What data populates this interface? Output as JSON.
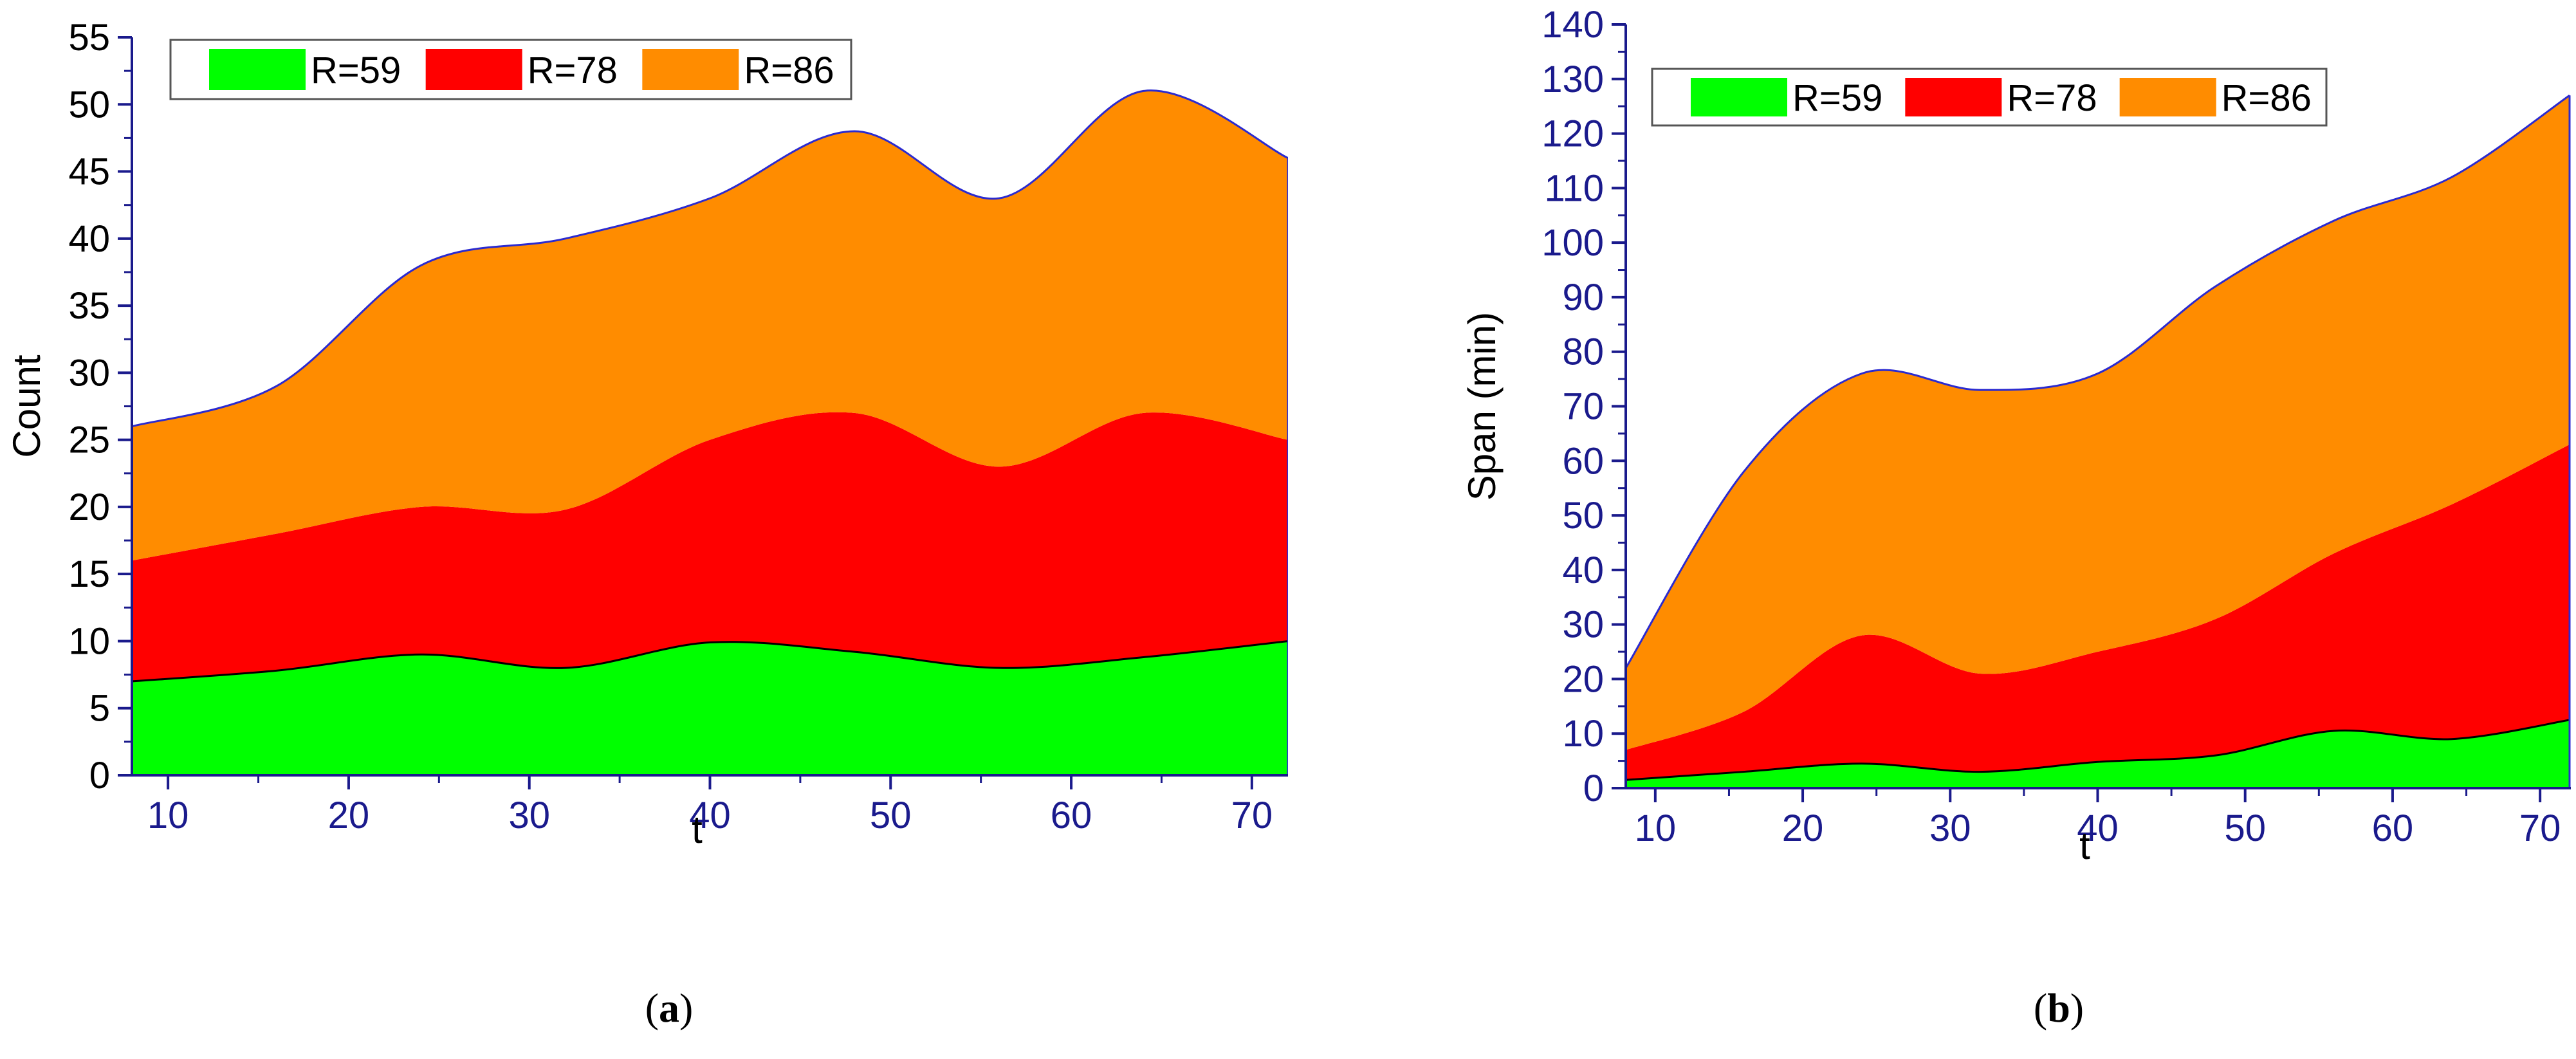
{
  "chart_data": [
    {
      "id": "a",
      "type": "area",
      "stacked": true,
      "caption": "a",
      "xlabel": "t",
      "ylabel": "Count",
      "xlim": [
        8,
        72
      ],
      "ylim": [
        0,
        55
      ],
      "xticks": [
        10,
        20,
        30,
        40,
        50,
        60,
        70
      ],
      "yticks": [
        0,
        5,
        10,
        15,
        20,
        25,
        30,
        35,
        40,
        45,
        50,
        55
      ],
      "x": [
        8,
        16,
        24,
        32,
        40,
        48,
        56,
        64,
        72
      ],
      "series": [
        {
          "name": "R=59",
          "color": "#00ff00",
          "cumulative": [
            7,
            7.8,
            9,
            8,
            9.9,
            9.2,
            8,
            8.8,
            10
          ]
        },
        {
          "name": "R=78",
          "color": "#ff0000",
          "cumulative": [
            16,
            18,
            20,
            19.8,
            25,
            27,
            23,
            27,
            25
          ]
        },
        {
          "name": "R=86",
          "color": "#ff8c00",
          "cumulative": [
            26,
            29,
            38,
            40,
            43,
            48,
            43,
            51,
            46
          ]
        }
      ],
      "legend": {
        "position": "top-left",
        "entries": [
          "R=59",
          "R=78",
          "R=86"
        ]
      },
      "axis_color": "#1a1a8c",
      "outline_color": "#2a2ad0"
    },
    {
      "id": "b",
      "type": "area",
      "stacked": true,
      "caption": "b",
      "xlabel": "t",
      "ylabel": "Span (min)",
      "xlim": [
        8,
        72
      ],
      "ylim": [
        0,
        140
      ],
      "xticks": [
        10,
        20,
        30,
        40,
        50,
        60,
        70
      ],
      "yticks": [
        0,
        10,
        20,
        30,
        40,
        50,
        60,
        70,
        80,
        90,
        100,
        110,
        120,
        130,
        140
      ],
      "x": [
        8,
        16,
        24,
        32,
        40,
        48,
        56,
        64,
        72
      ],
      "series": [
        {
          "name": "R=59",
          "color": "#00ff00",
          "cumulative": [
            1.5,
            3,
            4.5,
            3,
            4.8,
            6,
            10.5,
            9,
            12.5
          ]
        },
        {
          "name": "R=78",
          "color": "#ff0000",
          "cumulative": [
            7,
            14,
            28,
            21,
            25,
            31,
            43,
            52,
            63
          ]
        },
        {
          "name": "R=86",
          "color": "#ff8c00",
          "cumulative": [
            22,
            58,
            76,
            73,
            76,
            92,
            104,
            112,
            127
          ]
        }
      ],
      "legend": {
        "position": "top-left",
        "entries": [
          "R=59",
          "R=78",
          "R=86"
        ]
      },
      "axis_color": "#1a1a8c",
      "outline_color": "#2a2ad0"
    }
  ]
}
